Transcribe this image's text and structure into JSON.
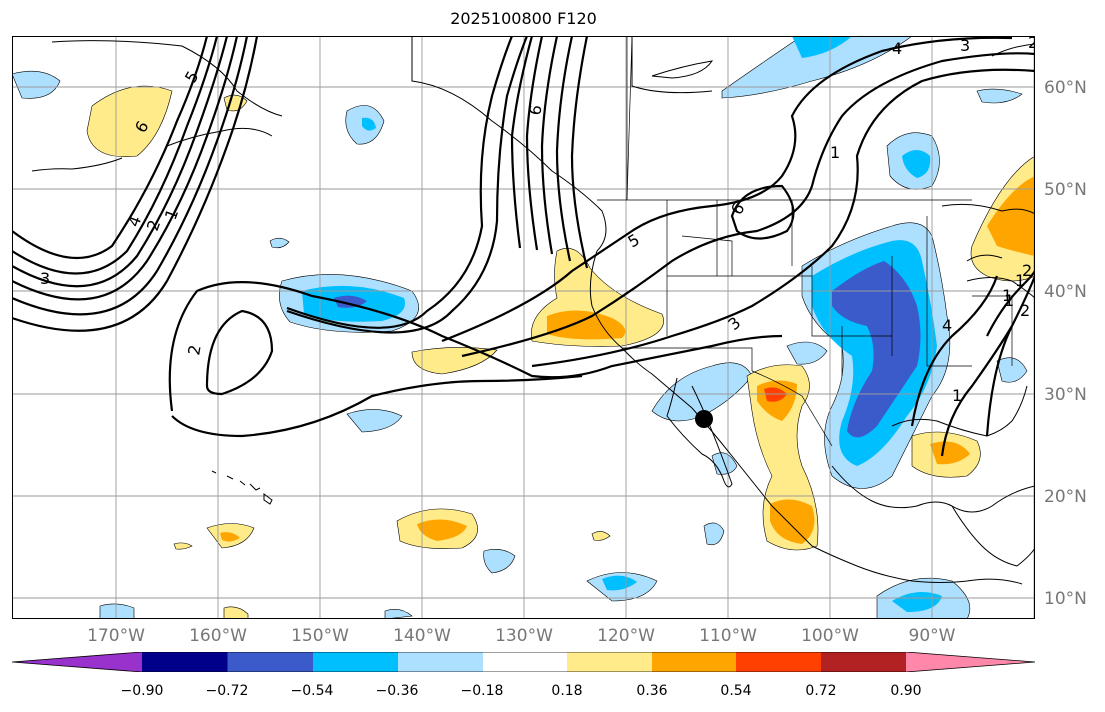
{
  "title": "2025100800 F120",
  "map": {
    "projection": "PlateCarree",
    "lon_range": [
      -180,
      -80
    ],
    "lat_range": [
      8,
      65
    ],
    "gridlines": true,
    "marker": {
      "lon": -111.2,
      "lat": 27.5,
      "symbol": "black-dot"
    }
  },
  "lon_labels": [
    "170°W",
    "160°W",
    "150°W",
    "140°W",
    "130°W",
    "120°W",
    "110°W",
    "100°W",
    "90°W"
  ],
  "lat_labels": [
    "60°N",
    "50°N",
    "40°N",
    "30°N",
    "20°N",
    "10°N"
  ],
  "contour_labels": [
    "6",
    "5",
    "4",
    "3",
    "2",
    "1",
    "6",
    "4",
    "3",
    "2",
    "1",
    "6",
    "5",
    "4",
    "3",
    "2",
    "1",
    "2",
    "1",
    "1",
    "1",
    "2"
  ],
  "colorbar": {
    "extend": "both",
    "tick_labels": [
      "−0.90",
      "−0.72",
      "−0.54",
      "−0.36",
      "−0.18",
      "0.18",
      "0.36",
      "0.54",
      "0.72",
      "0.90"
    ],
    "colors": [
      "#9932CC",
      "#00008B",
      "#3A5BC9",
      "#00BFFF",
      "#ADDFFF",
      "#FFFFFF",
      "#FFEB8A",
      "#FFA500",
      "#FF4000",
      "#B22222",
      "#FF88AA"
    ]
  }
}
